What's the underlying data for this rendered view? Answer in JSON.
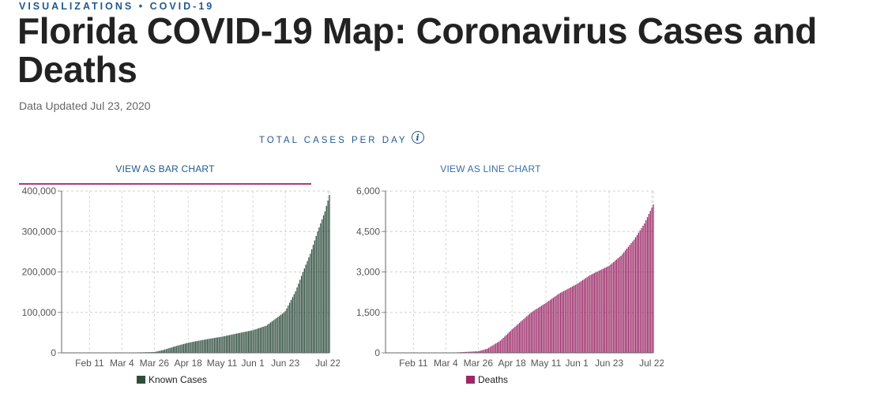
{
  "header": {
    "kicker": "VISUALIZATIONS • COVID-19",
    "title": "Florida COVID-19 Map: Coronavirus Cases and Deaths",
    "updated": "Data Updated Jul 23, 2020"
  },
  "section": {
    "title": "TOTAL CASES PER DAY",
    "info_icon": "info-icon"
  },
  "tabs": {
    "bar": "VIEW AS BAR CHART",
    "line": "VIEW AS LINE CHART",
    "active": "bar",
    "active_color": "#b03a7a"
  },
  "chart_data": [
    {
      "type": "bar",
      "series": [
        {
          "name": "Known Cases",
          "color": "#2e4d3d",
          "points": [
            [
              "2020-03-01",
              0
            ],
            [
              "2020-03-26",
              2000
            ],
            [
              "2020-04-01",
              7000
            ],
            [
              "2020-04-10",
              17000
            ],
            [
              "2020-04-18",
              25000
            ],
            [
              "2020-05-01",
              34000
            ],
            [
              "2020-05-11",
              40000
            ],
            [
              "2020-05-20",
              47000
            ],
            [
              "2020-06-01",
              56000
            ],
            [
              "2020-06-10",
              67000
            ],
            [
              "2020-06-20",
              94000
            ],
            [
              "2020-06-23",
              103000
            ],
            [
              "2020-06-30",
              152000
            ],
            [
              "2020-07-05",
              200000
            ],
            [
              "2020-07-10",
              245000
            ],
            [
              "2020-07-15",
              300000
            ],
            [
              "2020-07-20",
              350000
            ],
            [
              "2020-07-23",
              390000
            ]
          ]
        }
      ],
      "x_range": [
        "2020-01-23",
        "2020-07-23"
      ],
      "x_ticks": [
        "Feb 11",
        "Mar 4",
        "Mar 26",
        "Apr 18",
        "May 11",
        "Jun 1",
        "Jun 23",
        "Jul 22"
      ],
      "x_tick_dates": [
        "2020-02-11",
        "2020-03-04",
        "2020-03-26",
        "2020-04-18",
        "2020-05-11",
        "2020-06-01",
        "2020-06-23",
        "2020-07-22"
      ],
      "y_ticks": [
        "0",
        "100,000",
        "200,000",
        "300,000",
        "400,000"
      ],
      "ylim": [
        0,
        400000
      ],
      "grid": true
    },
    {
      "type": "bar",
      "series": [
        {
          "name": "Deaths",
          "color": "#9b2766",
          "points": [
            [
              "2020-03-06",
              0
            ],
            [
              "2020-03-26",
              60
            ],
            [
              "2020-04-01",
              150
            ],
            [
              "2020-04-10",
              450
            ],
            [
              "2020-04-18",
              870
            ],
            [
              "2020-05-01",
              1500
            ],
            [
              "2020-05-11",
              1850
            ],
            [
              "2020-05-20",
              2200
            ],
            [
              "2020-06-01",
              2550
            ],
            [
              "2020-06-10",
              2880
            ],
            [
              "2020-06-23",
              3230
            ],
            [
              "2020-07-01",
              3600
            ],
            [
              "2020-07-10",
              4200
            ],
            [
              "2020-07-17",
              4800
            ],
            [
              "2020-07-23",
              5500
            ]
          ]
        }
      ],
      "x_range": [
        "2020-01-23",
        "2020-07-23"
      ],
      "x_ticks": [
        "Feb 11",
        "Mar 4",
        "Mar 26",
        "Apr 18",
        "May 11",
        "Jun 1",
        "Jun 23",
        "Jul 22"
      ],
      "x_tick_dates": [
        "2020-02-11",
        "2020-03-04",
        "2020-03-26",
        "2020-04-18",
        "2020-05-11",
        "2020-06-01",
        "2020-06-23",
        "2020-07-22"
      ],
      "y_ticks": [
        "0",
        "1,500",
        "3,000",
        "4,500",
        "6,000"
      ],
      "ylim": [
        0,
        6000
      ],
      "grid": true
    }
  ]
}
